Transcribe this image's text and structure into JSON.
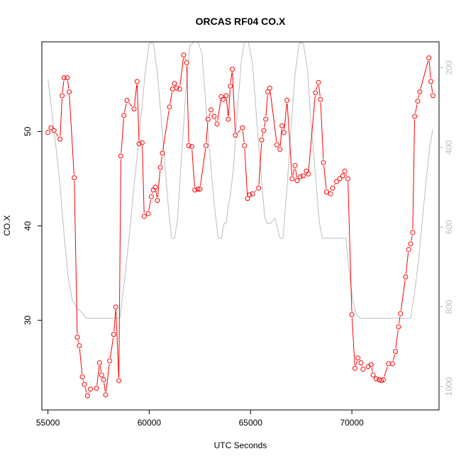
{
  "chart_data": {
    "type": "line",
    "title": "ORCAS RF04 CO.X",
    "xlabel": "UTC Seconds",
    "ylabel": "CO.X",
    "xlim": [
      54700,
      74300
    ],
    "ylim": [
      20.5,
      59.5
    ],
    "x_ticks": [
      55000,
      60000,
      65000,
      70000
    ],
    "y_ticks": [
      30,
      40,
      50
    ],
    "y2_ticks": [
      200,
      400,
      600,
      800,
      1000
    ],
    "y2lim": [
      1059,
      135
    ],
    "grid": false,
    "colors": {
      "series": "#ff0000",
      "secondary": "#bebebe",
      "axis": "#000000",
      "axis2": "#bebebe"
    },
    "series": [
      {
        "values": [
          [
            55000,
            49.9
          ],
          [
            55150,
            50.4
          ],
          [
            55300,
            50.1
          ],
          [
            55600,
            49.2
          ],
          [
            55700,
            53.8
          ],
          [
            55800,
            55.7
          ],
          [
            55950,
            55.7
          ],
          [
            56050,
            54.2
          ],
          [
            56300,
            45.1
          ],
          [
            56450,
            28.2
          ],
          [
            56550,
            27.3
          ],
          [
            56700,
            24.0
          ],
          [
            56800,
            23.2
          ],
          [
            56950,
            22.0
          ],
          [
            57100,
            22.7
          ],
          [
            57400,
            22.8
          ],
          [
            57550,
            25.5
          ],
          [
            57650,
            24.2
          ],
          [
            57750,
            23.7
          ],
          [
            57850,
            22.1
          ],
          [
            58050,
            25.7
          ],
          [
            58250,
            28.5
          ],
          [
            58350,
            31.4
          ],
          [
            58500,
            23.6
          ],
          [
            58600,
            47.4
          ],
          [
            58750,
            51.7
          ],
          [
            58900,
            53.3
          ],
          [
            59250,
            52.4
          ],
          [
            59400,
            55.3
          ],
          [
            59500,
            48.7
          ],
          [
            59650,
            48.8
          ],
          [
            59750,
            41.0
          ],
          [
            59950,
            41.3
          ],
          [
            60100,
            43.1
          ],
          [
            60200,
            43.8
          ],
          [
            60300,
            44.1
          ],
          [
            60400,
            42.7
          ],
          [
            60550,
            46.2
          ],
          [
            60650,
            47.7
          ],
          [
            61000,
            52.6
          ],
          [
            61150,
            54.5
          ],
          [
            61250,
            55.1
          ],
          [
            61350,
            54.6
          ],
          [
            61500,
            54.5
          ],
          [
            61700,
            58.1
          ],
          [
            61850,
            57.3
          ],
          [
            61950,
            48.5
          ],
          [
            62100,
            48.4
          ],
          [
            62250,
            43.8
          ],
          [
            62400,
            43.9
          ],
          [
            62500,
            43.9
          ],
          [
            62800,
            48.5
          ],
          [
            62900,
            51.3
          ],
          [
            63050,
            52.3
          ],
          [
            63200,
            51.6
          ],
          [
            63350,
            50.8
          ],
          [
            63550,
            53.7
          ],
          [
            63650,
            53.4
          ],
          [
            63800,
            53.8
          ],
          [
            63900,
            51.3
          ],
          [
            64000,
            54.8
          ],
          [
            64100,
            56.6
          ],
          [
            64250,
            49.6
          ],
          [
            64600,
            50.4
          ],
          [
            64700,
            48.5
          ],
          [
            64850,
            42.9
          ],
          [
            64950,
            43.3
          ],
          [
            65100,
            43.4
          ],
          [
            65400,
            44.0
          ],
          [
            65550,
            49.1
          ],
          [
            65650,
            50.1
          ],
          [
            65750,
            51.3
          ],
          [
            65850,
            54.2
          ],
          [
            65950,
            54.6
          ],
          [
            66300,
            48.6
          ],
          [
            66450,
            48.1
          ],
          [
            66550,
            50.6
          ],
          [
            66650,
            49.9
          ],
          [
            66800,
            53.3
          ],
          [
            67050,
            45.0
          ],
          [
            67200,
            46.4
          ],
          [
            67300,
            44.8
          ],
          [
            67450,
            45.2
          ],
          [
            67600,
            45.3
          ],
          [
            67750,
            45.8
          ],
          [
            67850,
            45.5
          ],
          [
            68200,
            54.1
          ],
          [
            68350,
            55.2
          ],
          [
            68450,
            53.4
          ],
          [
            68600,
            46.7
          ],
          [
            68750,
            43.6
          ],
          [
            68950,
            43.4
          ],
          [
            69050,
            44.0
          ],
          [
            69250,
            44.7
          ],
          [
            69400,
            45.0
          ],
          [
            69550,
            45.3
          ],
          [
            69650,
            45.8
          ],
          [
            69800,
            45.0
          ],
          [
            70000,
            30.6
          ],
          [
            70150,
            24.9
          ],
          [
            70300,
            26.0
          ],
          [
            70450,
            25.5
          ],
          [
            70550,
            24.8
          ],
          [
            70800,
            25.1
          ],
          [
            70950,
            25.3
          ],
          [
            71050,
            24.2
          ],
          [
            71200,
            23.8
          ],
          [
            71350,
            23.7
          ],
          [
            71450,
            23.6
          ],
          [
            71550,
            23.7
          ],
          [
            71800,
            25.4
          ],
          [
            72000,
            25.4
          ],
          [
            72150,
            26.7
          ],
          [
            72300,
            29.3
          ],
          [
            72400,
            30.7
          ],
          [
            72650,
            34.6
          ],
          [
            72800,
            37.5
          ],
          [
            72900,
            38.1
          ],
          [
            73000,
            39.3
          ],
          [
            73100,
            51.6
          ],
          [
            73250,
            53.2
          ],
          [
            73350,
            54.2
          ],
          [
            73800,
            57.8
          ],
          [
            73900,
            55.3
          ],
          [
            74000,
            53.8
          ]
        ]
      }
    ],
    "secondary": {
      "values": [
        [
          55000,
          229
        ],
        [
          55200,
          313
        ],
        [
          55400,
          400
        ],
        [
          55600,
          496
        ],
        [
          55800,
          620
        ],
        [
          56000,
          725
        ],
        [
          56200,
          783
        ],
        [
          56450,
          804
        ],
        [
          56700,
          816
        ],
        [
          56900,
          829
        ],
        [
          57200,
          829
        ],
        [
          57500,
          829
        ],
        [
          57800,
          829
        ],
        [
          58100,
          829
        ],
        [
          58300,
          829
        ],
        [
          58550,
          829
        ],
        [
          58800,
          727
        ],
        [
          59000,
          628
        ],
        [
          59200,
          520
        ],
        [
          59400,
          423
        ],
        [
          59600,
          321
        ],
        [
          59800,
          212
        ],
        [
          60000,
          138
        ],
        [
          60200,
          138
        ],
        [
          60400,
          212
        ],
        [
          60600,
          333
        ],
        [
          60800,
          460
        ],
        [
          60950,
          555
        ],
        [
          61100,
          628
        ],
        [
          61250,
          628
        ],
        [
          61400,
          578
        ],
        [
          61600,
          420
        ],
        [
          61800,
          264
        ],
        [
          62000,
          145
        ],
        [
          62200,
          135
        ],
        [
          62400,
          135
        ],
        [
          62600,
          164
        ],
        [
          62800,
          296
        ],
        [
          63000,
          423
        ],
        [
          63200,
          539
        ],
        [
          63400,
          628
        ],
        [
          63550,
          628
        ],
        [
          63700,
          590
        ],
        [
          63800,
          590
        ],
        [
          63900,
          543
        ],
        [
          64000,
          521
        ],
        [
          64150,
          455
        ],
        [
          64350,
          310
        ],
        [
          64550,
          180
        ],
        [
          64700,
          135
        ],
        [
          64900,
          135
        ],
        [
          65100,
          190
        ],
        [
          65300,
          330
        ],
        [
          65500,
          460
        ],
        [
          65700,
          575
        ],
        [
          65800,
          590
        ],
        [
          66000,
          590
        ],
        [
          66200,
          578
        ],
        [
          66450,
          628
        ],
        [
          66600,
          628
        ],
        [
          66800,
          500
        ],
        [
          67000,
          350
        ],
        [
          67200,
          215
        ],
        [
          67400,
          138
        ],
        [
          67600,
          138
        ],
        [
          67800,
          200
        ],
        [
          68000,
          350
        ],
        [
          68200,
          470
        ],
        [
          68400,
          590
        ],
        [
          68550,
          628
        ],
        [
          69000,
          628
        ],
        [
          69500,
          628
        ],
        [
          69700,
          628
        ],
        [
          69900,
          727
        ],
        [
          70050,
          785
        ],
        [
          70200,
          816
        ],
        [
          70400,
          829
        ],
        [
          71000,
          829
        ],
        [
          71500,
          829
        ],
        [
          72000,
          829
        ],
        [
          72500,
          829
        ],
        [
          72900,
          829
        ],
        [
          73100,
          763
        ],
        [
          73300,
          680
        ],
        [
          73500,
          570
        ],
        [
          73700,
          465
        ],
        [
          73850,
          395
        ],
        [
          74000,
          354
        ]
      ]
    }
  }
}
